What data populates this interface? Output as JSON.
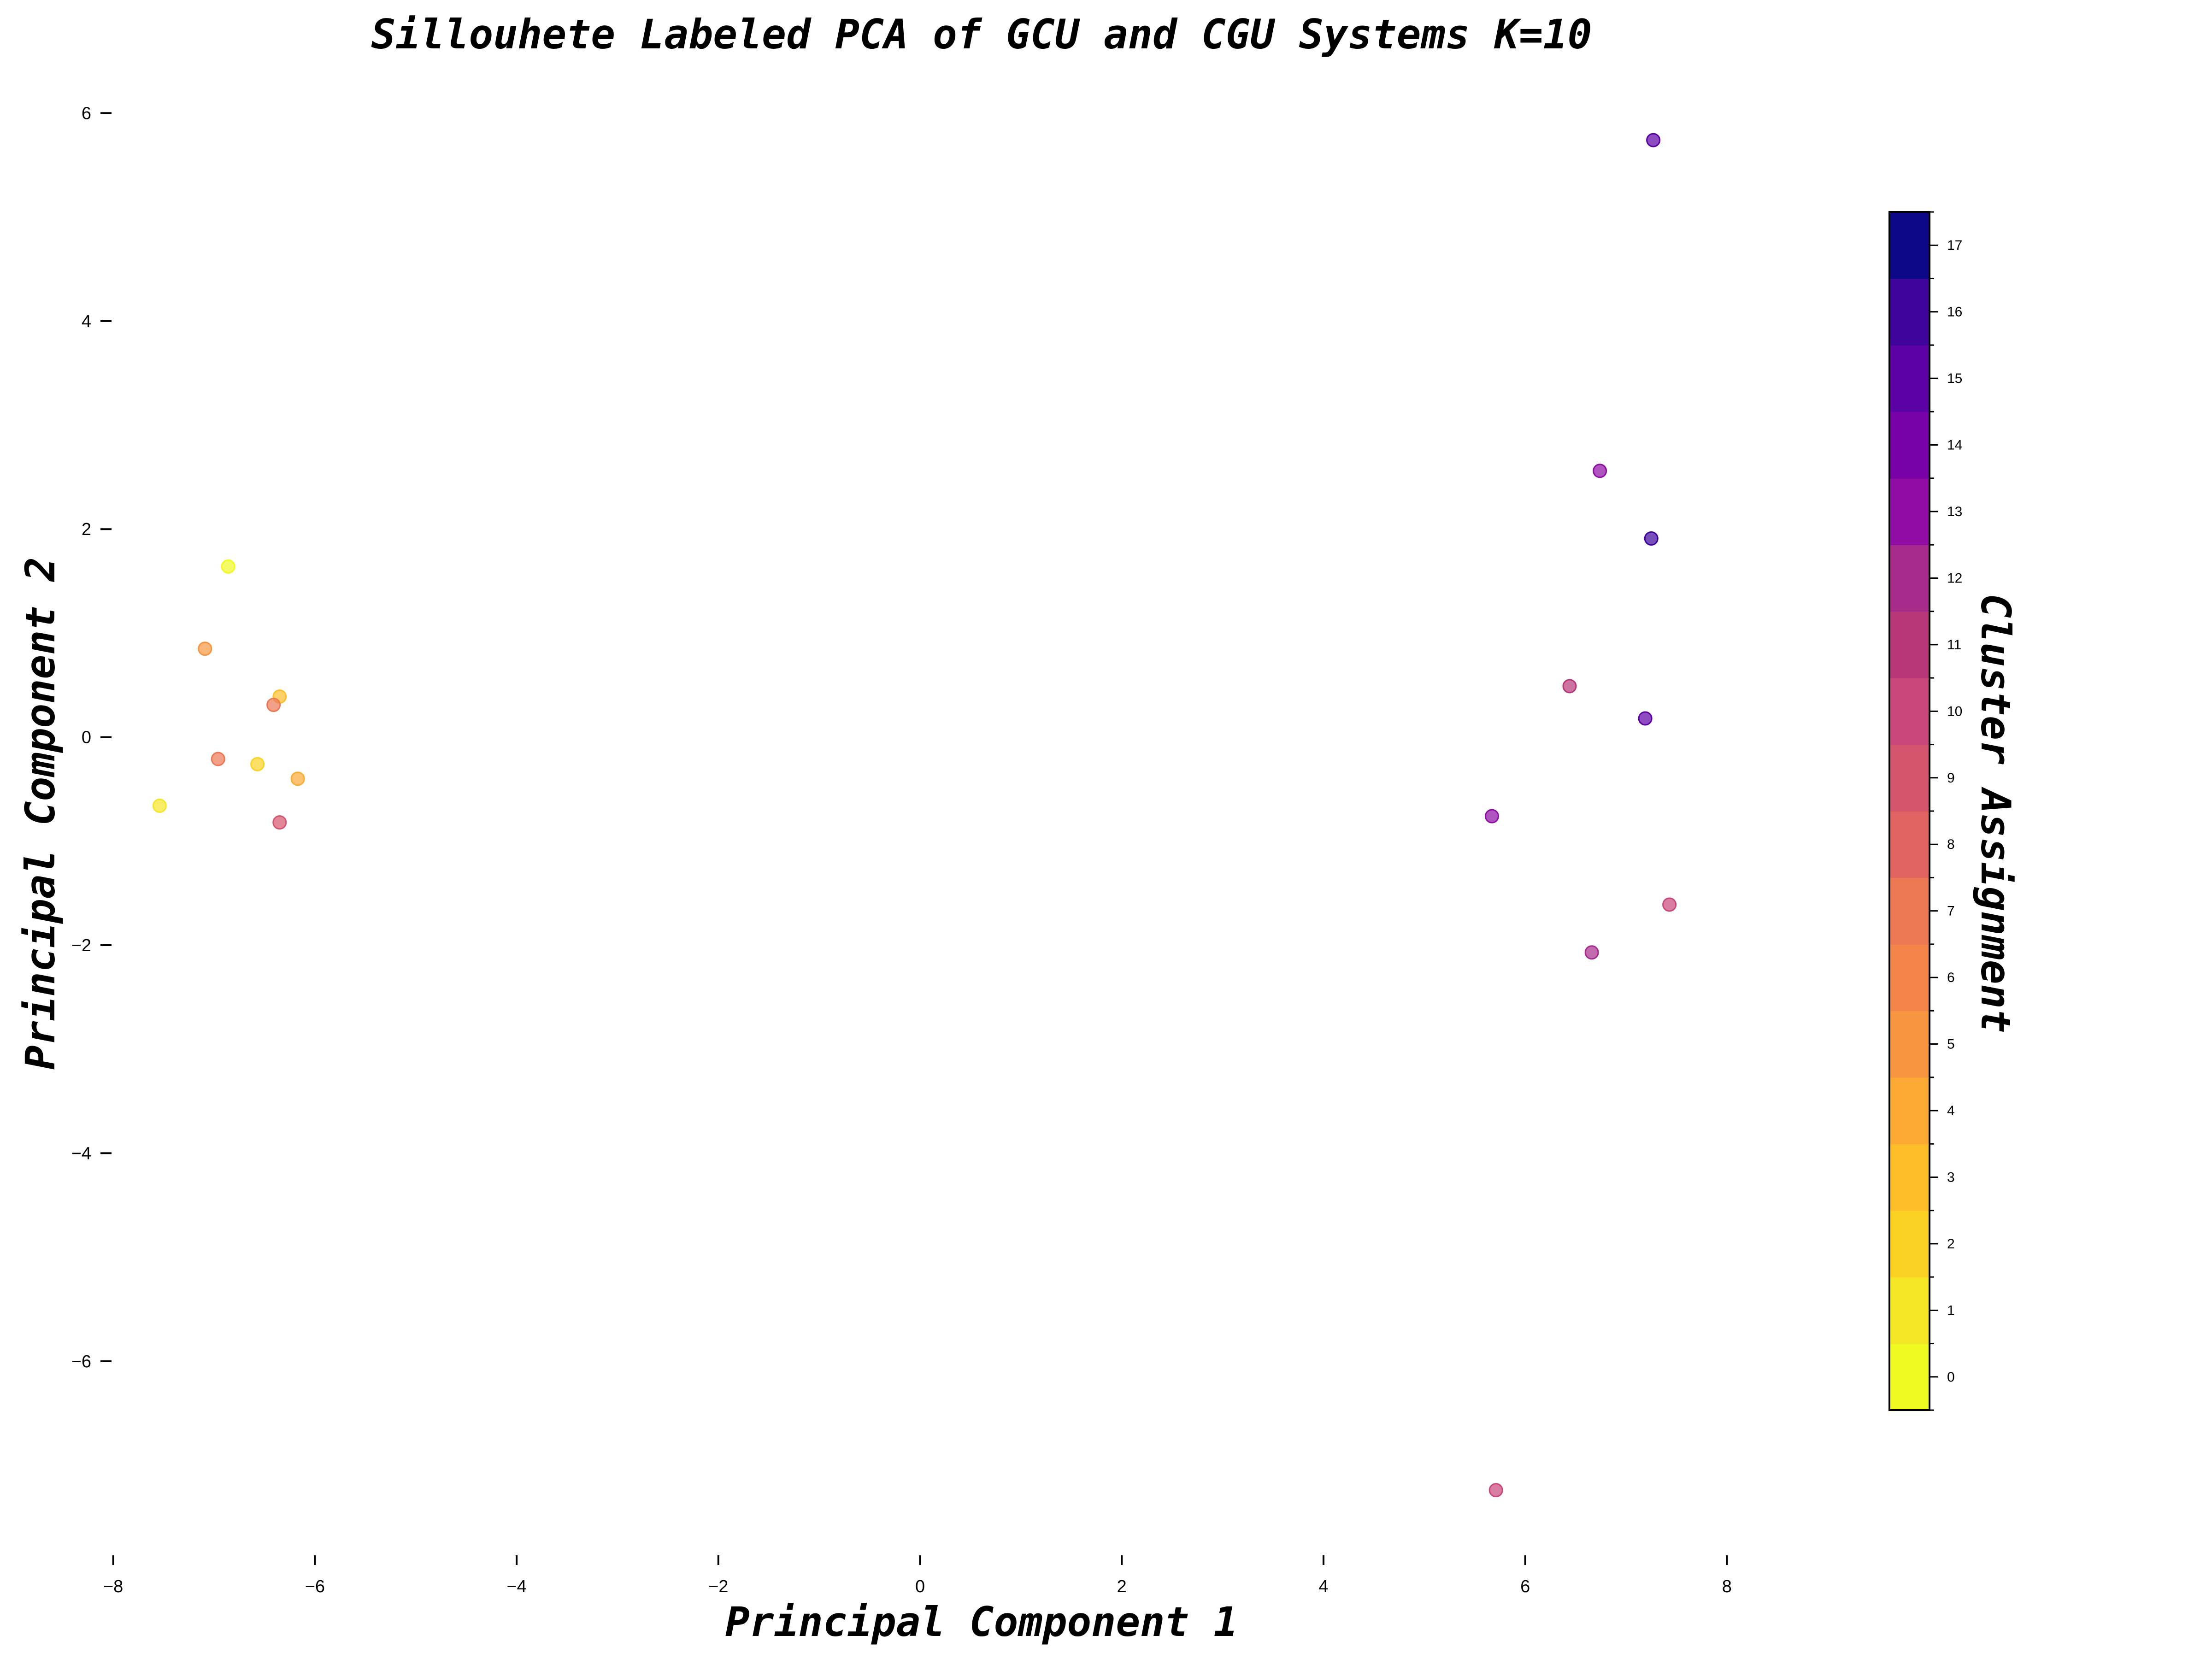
{
  "chart_data": {
    "type": "scatter",
    "title": "Sillouhete Labeled PCA of GCU and CGU Systems K=10",
    "xlabel": "Principal Component 1",
    "ylabel": "Principal Component 2",
    "xlim": [
      -8.3,
      9.2
    ],
    "ylim": [
      -7.8,
      6.6
    ],
    "xticks": [
      -8,
      -6,
      -4,
      -2,
      0,
      2,
      4,
      6,
      8
    ],
    "yticks": [
      -6,
      -4,
      -2,
      0,
      2,
      4,
      6
    ],
    "grid": false,
    "colorbar": {
      "label": "Cluster Assignment",
      "min": 0,
      "max": 17,
      "ticks": [
        0,
        1,
        2,
        3,
        4,
        5,
        6,
        7,
        8,
        9,
        10,
        11,
        12,
        13,
        14,
        15,
        16,
        17
      ],
      "colormap": "plasma_r",
      "colors": [
        "#f0f921",
        "#f5e626",
        "#fbd124",
        "#fdbe2a",
        "#fcaa33",
        "#f89540",
        "#f3854b",
        "#ec7854",
        "#e16462",
        "#d5546e",
        "#c9477a",
        "#b73779",
        "#a62b8b",
        "#8f0da4",
        "#7801a8",
        "#5c01a6",
        "#3e049c",
        "#0d0887"
      ]
    },
    "points": [
      {
        "x": 7.27,
        "y": 5.74,
        "cluster": 15
      },
      {
        "x": 6.74,
        "y": 2.56,
        "cluster": 13
      },
      {
        "x": 7.25,
        "y": 1.91,
        "cluster": 16
      },
      {
        "x": 6.44,
        "y": 0.49,
        "cluster": 11
      },
      {
        "x": 7.19,
        "y": 0.18,
        "cluster": 15
      },
      {
        "x": 5.67,
        "y": -0.76,
        "cluster": 13
      },
      {
        "x": 7.43,
        "y": -1.61,
        "cluster": 10
      },
      {
        "x": 6.66,
        "y": -2.07,
        "cluster": 12
      },
      {
        "x": 5.71,
        "y": -7.24,
        "cluster": 10
      },
      {
        "x": -6.86,
        "y": 1.64,
        "cluster": 0
      },
      {
        "x": -7.09,
        "y": 0.85,
        "cluster": 5
      },
      {
        "x": -6.35,
        "y": 0.39,
        "cluster": 3
      },
      {
        "x": -6.41,
        "y": 0.31,
        "cluster": 7
      },
      {
        "x": -6.96,
        "y": -0.21,
        "cluster": 7
      },
      {
        "x": -6.57,
        "y": -0.26,
        "cluster": 2
      },
      {
        "x": -6.17,
        "y": -0.4,
        "cluster": 4
      },
      {
        "x": -7.54,
        "y": -0.66,
        "cluster": 1
      },
      {
        "x": -6.35,
        "y": -0.82,
        "cluster": 9
      }
    ]
  }
}
